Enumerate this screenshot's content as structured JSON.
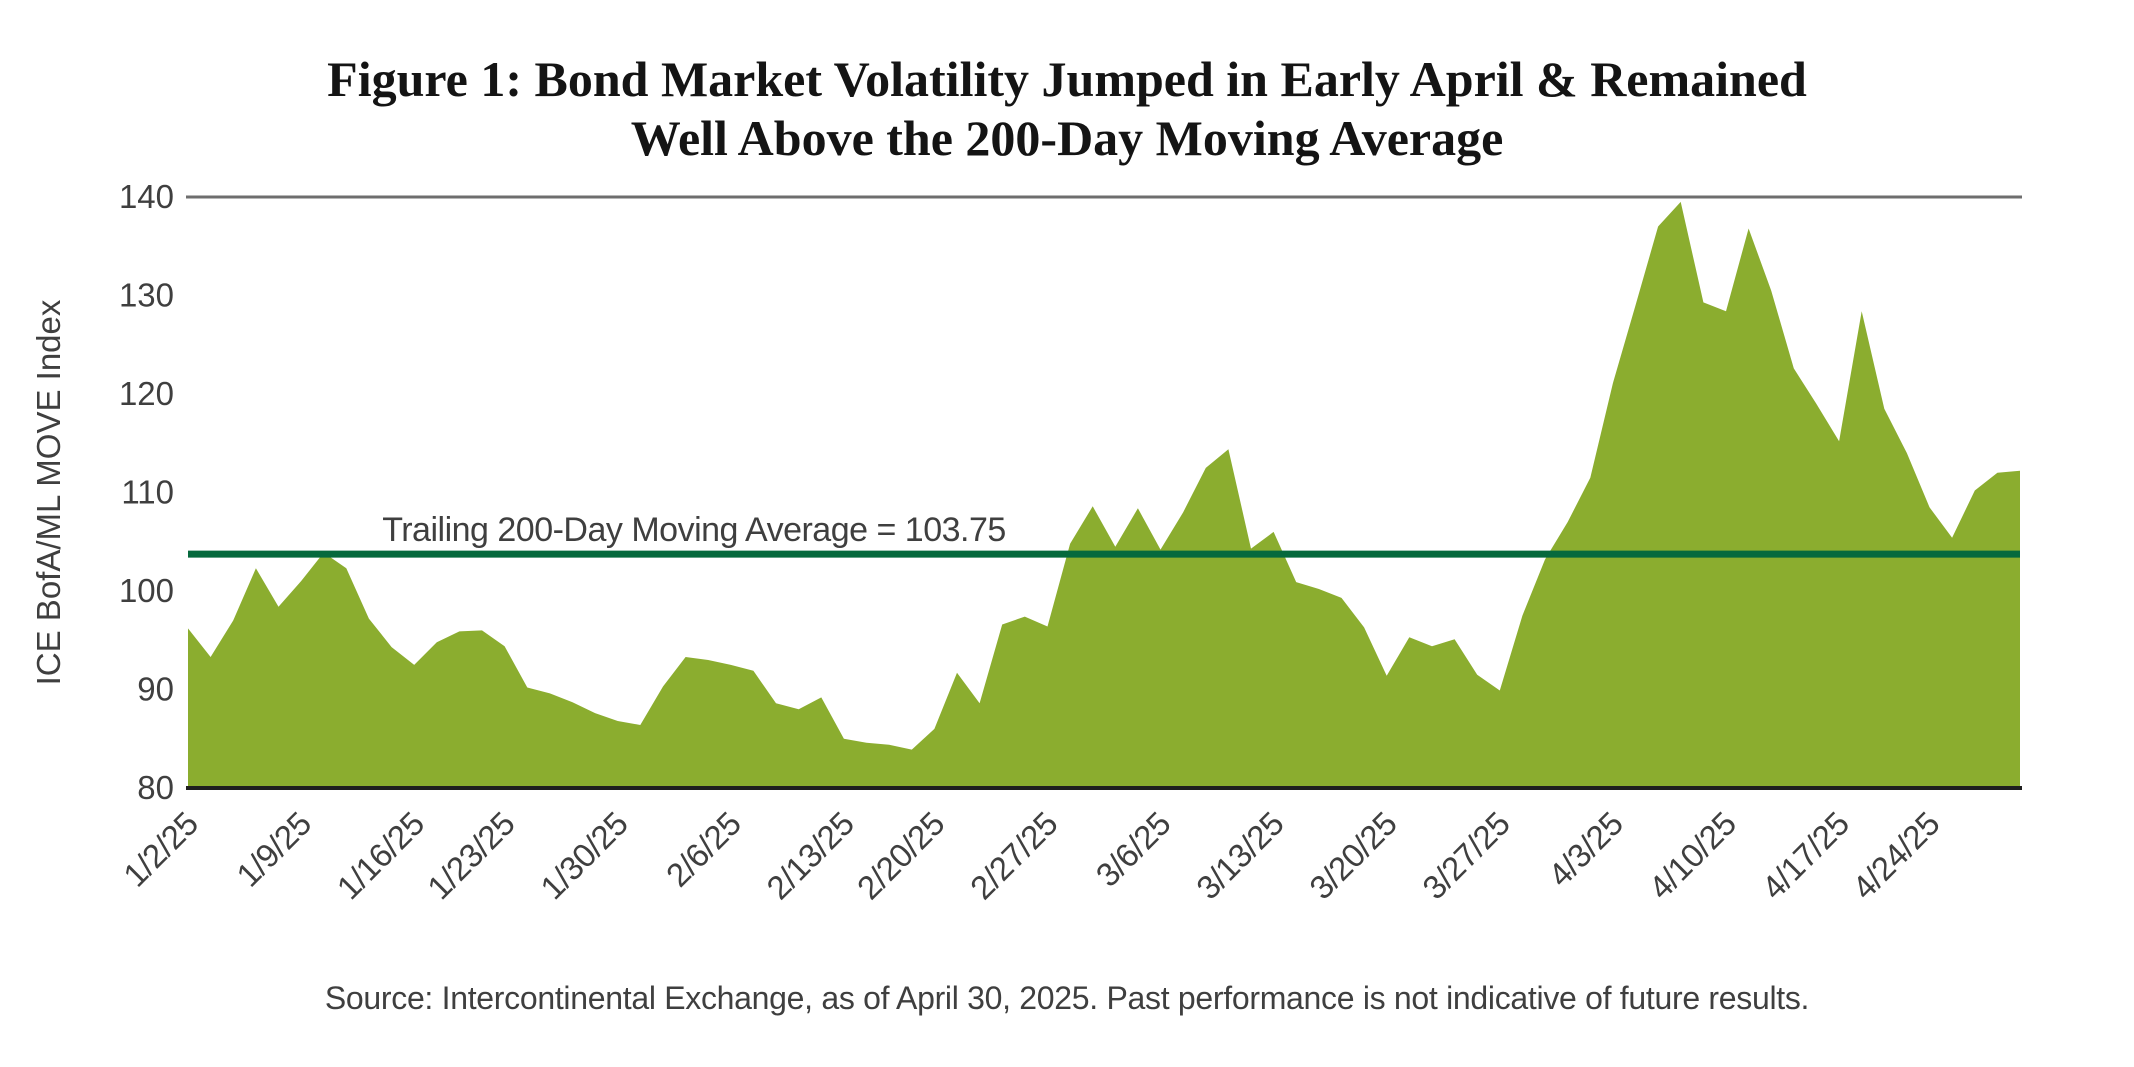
{
  "title": {
    "line1": "Figure 1: Bond Market Volatility Jumped in Early April & Remained",
    "line2": "Well Above the 200-Day Moving Average"
  },
  "source": "Source: Intercontinental Exchange, as of April 30, 2025. Past performance is not indicative of future results.",
  "chart_data": {
    "type": "area",
    "title": "Figure 1: Bond Market Volatility Jumped in Early April & Remained Well Above the 200-Day Moving Average",
    "ylabel": "ICE BofA/ML MOVE Index",
    "xlabel": "",
    "ylim": [
      80,
      140
    ],
    "yticks": [
      140,
      130,
      120,
      110,
      100,
      90,
      80
    ],
    "grid": "single top gridline at 140; baseline axis at 80; no other gridlines",
    "legend_position": "none",
    "xticks": [
      "1/2/25",
      "1/9/25",
      "1/16/25",
      "1/23/25",
      "1/30/25",
      "2/6/25",
      "2/13/25",
      "2/20/25",
      "2/27/25",
      "3/6/25",
      "3/13/25",
      "3/20/25",
      "3/27/25",
      "4/3/25",
      "4/10/25",
      "4/17/25",
      "4/24/25"
    ],
    "series_name": "ICE BofA/ML MOVE Index",
    "x": [
      "1/2/25",
      "1/3/25",
      "1/6/25",
      "1/7/25",
      "1/8/25",
      "1/9/25",
      "1/10/25",
      "1/13/25",
      "1/14/25",
      "1/15/25",
      "1/16/25",
      "1/17/25",
      "1/21/25",
      "1/22/25",
      "1/23/25",
      "1/24/25",
      "1/27/25",
      "1/28/25",
      "1/29/25",
      "1/30/25",
      "1/31/25",
      "2/3/25",
      "2/4/25",
      "2/5/25",
      "2/6/25",
      "2/7/25",
      "2/10/25",
      "2/11/25",
      "2/12/25",
      "2/13/25",
      "2/14/25",
      "2/18/25",
      "2/19/25",
      "2/20/25",
      "2/21/25",
      "2/24/25",
      "2/25/25",
      "2/26/25",
      "2/27/25",
      "2/28/25",
      "3/3/25",
      "3/4/25",
      "3/5/25",
      "3/6/25",
      "3/7/25",
      "3/10/25",
      "3/11/25",
      "3/12/25",
      "3/13/25",
      "3/14/25",
      "3/17/25",
      "3/18/25",
      "3/19/25",
      "3/20/25",
      "3/21/25",
      "3/24/25",
      "3/25/25",
      "3/26/25",
      "3/27/25",
      "3/28/25",
      "3/31/25",
      "4/1/25",
      "4/2/25",
      "4/3/25",
      "4/4/25",
      "4/7/25",
      "4/8/25",
      "4/9/25",
      "4/10/25",
      "4/11/25",
      "4/14/25",
      "4/15/25",
      "4/16/25",
      "4/17/25",
      "4/21/25",
      "4/22/25",
      "4/23/25",
      "4/24/25",
      "4/25/25",
      "4/28/25",
      "4/29/25",
      "4/30/25"
    ],
    "values": [
      96.2,
      93.3,
      97.0,
      102.3,
      98.4,
      101.0,
      103.9,
      102.3,
      97.2,
      94.3,
      92.5,
      94.8,
      95.9,
      96.0,
      94.4,
      90.2,
      89.6,
      88.7,
      87.6,
      86.8,
      86.4,
      90.3,
      93.3,
      93.0,
      92.5,
      91.9,
      88.6,
      88.0,
      89.2,
      85.0,
      84.6,
      84.4,
      83.9,
      86.0,
      91.7,
      88.6,
      96.6,
      97.4,
      96.4,
      104.8,
      108.6,
      104.5,
      108.4,
      104.2,
      108.0,
      112.5,
      114.4,
      104.3,
      106.0,
      100.9,
      100.2,
      99.3,
      96.3,
      91.4,
      95.3,
      94.4,
      95.1,
      91.5,
      89.9,
      97.5,
      103.2,
      107.0,
      111.5,
      121.1,
      129.0,
      137.0,
      139.5,
      129.3,
      128.4,
      136.8,
      130.5,
      122.6,
      119.0,
      115.2,
      128.4,
      118.5,
      114.0,
      108.5,
      105.4,
      110.2,
      112.0,
      112.2
    ],
    "moving_average": {
      "value": 103.75,
      "label": "Trailing 200-Day Moving Average = 103.75"
    },
    "colors": {
      "area_fill": "#8BAD2F",
      "ma_line": "#06693D",
      "axis_text": "#3F3F3F",
      "title_text": "#141414",
      "top_gridline": "#6E6E6E",
      "baseline": "#1F1F1F"
    }
  }
}
